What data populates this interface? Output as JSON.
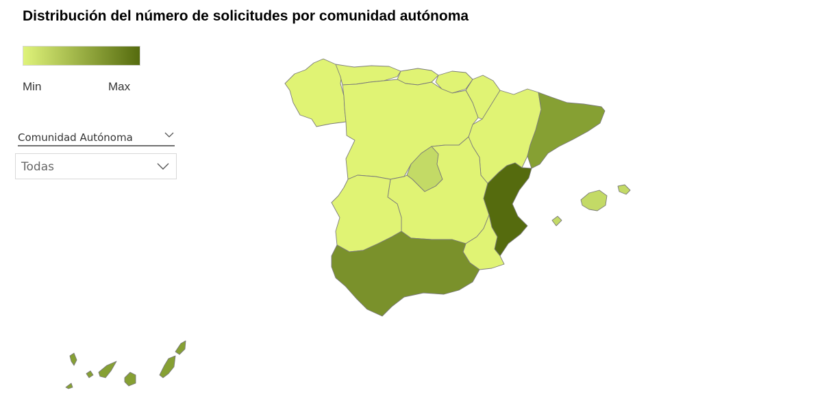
{
  "title": "Distribución del número de solicitudes por comunidad autónoma",
  "legend": {
    "min_label": "Min",
    "max_label": "Max",
    "color_min": "#dff37a",
    "color_max": "#556b0e"
  },
  "slicer": {
    "header_label": "Comunidad Autónoma",
    "selected_value": "Todas",
    "header_icon": "chevron-down-icon",
    "dropdown_icon": "chevron-down-icon"
  },
  "map": {
    "level_colors": {
      "low": "#e0f374",
      "low_mid": "#c3da66",
      "mid": "#86a033",
      "high": "#7a912b",
      "max": "#556b0e"
    },
    "regions": [
      {
        "name": "Galicia",
        "level": "low"
      },
      {
        "name": "Asturias",
        "level": "low"
      },
      {
        "name": "Cantabria",
        "level": "low"
      },
      {
        "name": "País Vasco",
        "level": "low"
      },
      {
        "name": "Navarra",
        "level": "low"
      },
      {
        "name": "La Rioja",
        "level": "low"
      },
      {
        "name": "Aragón",
        "level": "low"
      },
      {
        "name": "Cataluña",
        "level": "mid"
      },
      {
        "name": "Castilla y León",
        "level": "low"
      },
      {
        "name": "Comunidad de Madrid",
        "level": "low_mid"
      },
      {
        "name": "Castilla-La Mancha",
        "level": "low"
      },
      {
        "name": "Extremadura",
        "level": "low"
      },
      {
        "name": "Comunitat Valenciana",
        "level": "max"
      },
      {
        "name": "Región de Murcia",
        "level": "low"
      },
      {
        "name": "Andalucía",
        "level": "high"
      },
      {
        "name": "Illes Balears",
        "level": "low_mid"
      },
      {
        "name": "Canarias",
        "level": "mid"
      }
    ]
  }
}
